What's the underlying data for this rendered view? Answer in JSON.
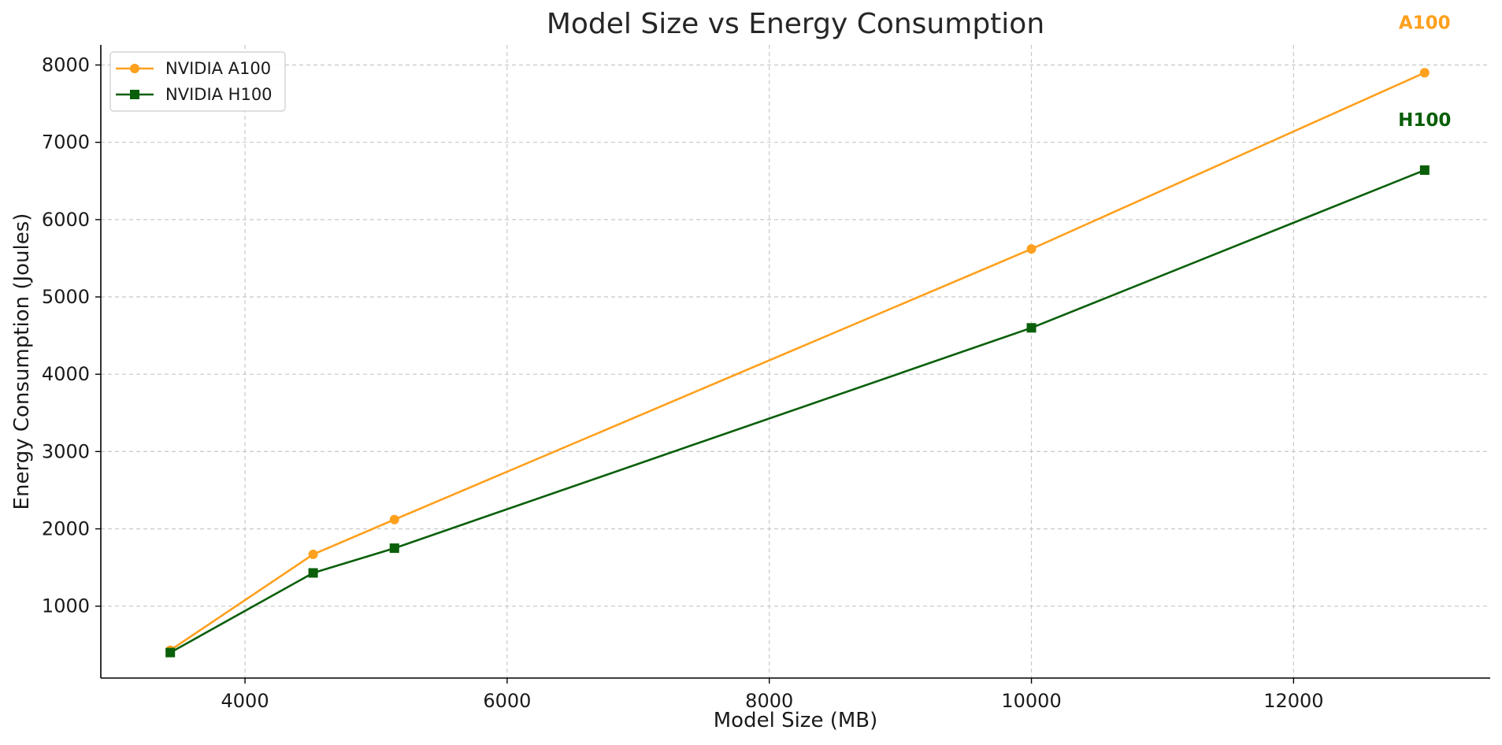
{
  "chart_data": {
    "type": "line",
    "title": "Model Size vs Energy Consumption",
    "xlabel": "Model Size (MB)",
    "ylabel": "Energy Consumption (Joules)",
    "xlim": [
      2900,
      13500
    ],
    "ylim": [
      70,
      8260
    ],
    "xticks": [
      4000,
      6000,
      8000,
      10000,
      12000
    ],
    "yticks": [
      1000,
      2000,
      3000,
      4000,
      5000,
      6000,
      7000,
      8000
    ],
    "grid": true,
    "legend_position": "top-left",
    "series": [
      {
        "name": "NVIDIA A100",
        "color": "#FFA01E",
        "marker": "circle",
        "end_label": "A100",
        "x": [
          3430,
          4520,
          5140,
          10000,
          13000
        ],
        "y": [
          430,
          1670,
          2120,
          5620,
          7900
        ]
      },
      {
        "name": "NVIDIA H100",
        "color": "#0A5F0A",
        "marker": "square",
        "end_label": "H100",
        "x": [
          3430,
          4520,
          5140,
          10000,
          13000
        ],
        "y": [
          400,
          1430,
          1750,
          4600,
          6640
        ]
      }
    ]
  }
}
